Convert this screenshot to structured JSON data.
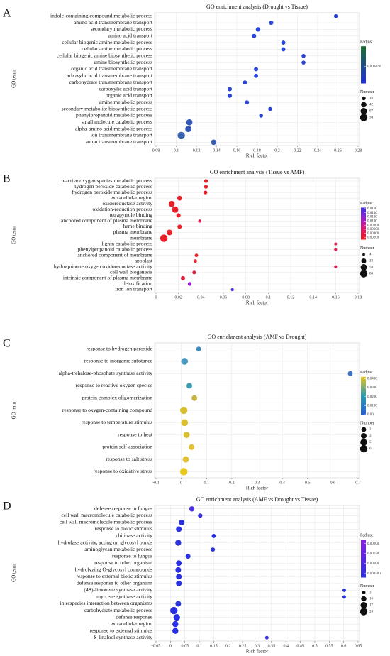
{
  "chart_data": [
    {
      "type": "scatter",
      "panel_label": "A",
      "title": "GO enrichment analysis (Drought vs Tissue)",
      "x_label": "Rich factor",
      "y_label": "GO term",
      "categories": [
        "indole-containing compound metabolic process",
        "amino acid transmembrane transport",
        "secondary metabolic process",
        "amino acid transport",
        "cellular biogenic amine metabolic process",
        "cellular amine metabolic process",
        "cellular biogenic amine biosynthetic process",
        "amine biosynthetic process",
        "organic acid transmembrane transport",
        "carboxylic acid transmembrane transport",
        "carbohydrate transmembrane transport",
        "carboxylic acid transport",
        "organic acid transport",
        "amine metabolic process",
        "secondary metabolite biosynthetic process",
        "phenylpropanoid metabolic process",
        "small molecule catabolic process",
        "alpha-amino acid metabolic process",
        "ion transmembrane transport",
        "anion transmembrane transport"
      ],
      "values": [
        0.258,
        0.194,
        0.181,
        0.177,
        0.206,
        0.206,
        0.226,
        0.226,
        0.179,
        0.179,
        0.168,
        0.153,
        0.153,
        0.17,
        0.193,
        0.184,
        0.113,
        0.112,
        0.105,
        0.137
      ],
      "sizes": [
        16,
        22,
        25,
        22,
        20,
        20,
        17,
        17,
        20,
        20,
        20,
        22,
        22,
        20,
        17,
        17,
        60,
        62,
        94,
        42
      ],
      "colors": [
        "#2a3fd8",
        "#2b45d8",
        "#2b45d8",
        "#2b45d8",
        "#2b45d8",
        "#2b45d8",
        "#2b45d8",
        "#2b45d8",
        "#2b45d8",
        "#2b45d8",
        "#2b45d8",
        "#2b45d8",
        "#2b45d8",
        "#2b45d8",
        "#2b45d8",
        "#2b45d8",
        "#3358b8",
        "#3358b8",
        "#3a62a8",
        "#3a5fb0"
      ],
      "xlim": [
        0.08,
        0.28
      ],
      "xticks": [
        0.08,
        0.1,
        0.12,
        0.14,
        0.16,
        0.18,
        0.2,
        0.22,
        0.24,
        0.26,
        0.28
      ],
      "grid": true,
      "color_title": "Padjust",
      "cmap": [
        "#1f2fd8",
        "#1a6e2e"
      ],
      "clim": [
        0.0002,
        0.0008
      ],
      "cticks": [
        0.000474
      ],
      "size_title": "Number",
      "size_ticks": [
        16,
        42,
        67,
        94
      ]
    },
    {
      "type": "scatter",
      "panel_label": "B",
      "title": "GO enrichment analysis (Tissue vs AMF)",
      "x_label": "Rich factor",
      "y_label": "GO term",
      "categories": [
        "reactive oxygen species metabolic process",
        "hydrogen peroxide catabolic process",
        "hydrogen peroxide metabolic process",
        "extracellular region",
        "oxidoreductase activity",
        "oxidation-reduction process",
        "tetrapyrrole binding",
        "anchored component of plasma membrane",
        "heme binding",
        "plasma membrane",
        "membrane",
        "lignin catabolic process",
        "phenylpropanoid catabolic process",
        "anchored component of membrane",
        "apoplast",
        "hydroquinone:oxygen oxidoreductase activity",
        "cell wall biogenesis",
        "intrinsic component of plasma membrane",
        "detoxification",
        "iron ion transport"
      ],
      "values": [
        0.0445,
        0.0445,
        0.044,
        0.021,
        0.014,
        0.017,
        0.02,
        0.039,
        0.021,
        0.012,
        0.007,
        0.16,
        0.16,
        0.036,
        0.035,
        0.16,
        0.034,
        0.024,
        0.03,
        0.068
      ],
      "sizes": [
        14,
        14,
        14,
        28,
        55,
        60,
        20,
        8,
        20,
        45,
        88,
        6,
        6,
        10,
        10,
        6,
        12,
        20,
        14,
        6
      ],
      "colors": [
        "#e8202a",
        "#e8202a",
        "#e8202a",
        "#e8202a",
        "#e8202a",
        "#e8202a",
        "#e8202a",
        "#e02050",
        "#e8202a",
        "#e8202a",
        "#e8202a",
        "#e02050",
        "#e02050",
        "#e8202a",
        "#e8202a",
        "#e02050",
        "#e02040",
        "#e02040",
        "#a020d0",
        "#4030e0"
      ],
      "xlim": [
        0,
        0.18
      ],
      "xticks": [
        0,
        0.02,
        0.04,
        0.06,
        0.08,
        0.1,
        0.12,
        0.14,
        0.16,
        0.18
      ],
      "grid": true,
      "color_title": "Padjust",
      "cmap": [
        "#e81a1a",
        "#e01a70",
        "#9a20d0",
        "#3a30e0"
      ],
      "clim": [
        0.001,
        0.0165
      ],
      "cticks": [
        {
          "value": 0.016,
          "label": "0.0160"
        },
        {
          "value": 0.014,
          "label": "0.0140"
        },
        {
          "value": 0.012,
          "label": "0.0120"
        },
        {
          "value": 0.01,
          "label": "0.0100"
        },
        {
          "value": 0.008,
          "label": "0.00800"
        },
        {
          "value": 0.006,
          "label": "0.00600"
        },
        {
          "value": 0.004,
          "label": "0.00400"
        },
        {
          "value": 0.002,
          "label": "0.00200"
        }
      ],
      "size_title": "Number",
      "size_ticks": [
        4,
        32,
        59,
        88
      ]
    },
    {
      "type": "scatter",
      "panel_label": "C",
      "title": "GO enrichment analysis (AMF vs Drought)",
      "x_label": "Rich factor",
      "y_label": "GO term",
      "categories": [
        "response to hydrogen peroxide",
        "response to inorganic substance",
        "alpha-trehalose-phosphate synthase activity",
        "response to reactive oxygen species",
        "protein complex oligomerization",
        "response to oxygen-containing compound",
        "response to temperature stimulus",
        "response to heat",
        "protein self-association",
        "response to salt stress",
        "response to oxidative stress"
      ],
      "values": [
        0.069,
        0.013,
        0.669,
        0.032,
        0.052,
        0.01,
        0.013,
        0.021,
        0.041,
        0.018,
        0.01
      ],
      "sizes": [
        2,
        5,
        2,
        3,
        3,
        6,
        5,
        4,
        3,
        4,
        6
      ],
      "colors": [
        "#3a8fc0",
        "#4a9ac0",
        "#3a70c0",
        "#3a9ab0",
        "#c8b440",
        "#d8c030",
        "#d8c030",
        "#d8c030",
        "#e0c030",
        "#e0c030",
        "#e8c820"
      ],
      "xlim": [
        -0.1,
        0.7
      ],
      "xticks": [
        -0.1,
        0,
        0.1,
        0.2,
        0.3,
        0.4,
        0.5,
        0.6,
        0.7
      ],
      "grid": true,
      "color_title": "Padjust",
      "cmap": [
        "#2a5fd0",
        "#2a9ab0",
        "#e8c820"
      ],
      "clim": [
        0,
        0.042
      ],
      "cticks": [
        {
          "value": 0.04,
          "label": "0.0400"
        },
        {
          "value": 0.03,
          "label": "0.0300"
        },
        {
          "value": 0.02,
          "label": "0.0200"
        },
        {
          "value": 0.01,
          "label": "0.0100"
        },
        {
          "value": 0,
          "label": "0.00"
        }
      ],
      "size_title": "Number",
      "size_ticks": [
        2,
        3,
        5,
        6
      ]
    },
    {
      "type": "scatter",
      "panel_label": "D",
      "title": "GO enrichment analysis (AMF vs Drought vs Tissue)",
      "x_label": "Rich factor",
      "y_label": "GO term",
      "categories": [
        "defense response to fungus",
        "cell wall macromolecule catabolic process",
        "cell wall macromolecule metabolic process",
        "response to biotic stimulus",
        "chitinase activity",
        "hydrolase activity, acting on glycosyl bonds",
        "aminoglycan metabolic process",
        "response to fungus",
        "response to other organism",
        "hydrolyzing O-glycosyl compounds",
        "response to external biotic stimulus",
        "defense response to other organism",
        "(4S)-limonene synthase activity",
        "myrcene synthase activity",
        "interspecies interaction between organisms",
        "carbohydrate metabolic process",
        "defense response",
        "extracellular region",
        "response to external stimulus",
        "S-linalool synthase activity"
      ],
      "values": [
        0.074,
        0.103,
        0.039,
        0.029,
        0.15,
        0.027,
        0.147,
        0.061,
        0.029,
        0.027,
        0.029,
        0.029,
        0.602,
        0.602,
        0.027,
        0.012,
        0.022,
        0.017,
        0.017,
        0.334
      ],
      "sizes": [
        10,
        6,
        12,
        12,
        5,
        14,
        5,
        8,
        12,
        12,
        12,
        12,
        3,
        3,
        12,
        24,
        18,
        14,
        14,
        3
      ],
      "colors": [
        "#4a30e0",
        "#3a30e0",
        "#2a30e0",
        "#2a30e0",
        "#2a30e0",
        "#2a30e0",
        "#2a30e0",
        "#2a30e0",
        "#2a30e0",
        "#2a30e0",
        "#2a30e0",
        "#2a30e0",
        "#2a30e0",
        "#2a30e0",
        "#2a30e0",
        "#2a30e0",
        "#2a30e0",
        "#2a30e0",
        "#2a30e0",
        "#3a30e0"
      ],
      "xlim": [
        -0.05,
        0.65
      ],
      "xticks": [
        -0.05,
        0,
        0.05,
        0.1,
        0.15,
        0.2,
        0.25,
        0.3,
        0.35,
        0.4,
        0.45,
        0.5,
        0.55,
        0.6,
        0.65
      ],
      "grid": true,
      "color_title": "Padjust",
      "cmap": [
        "#2a2ee0",
        "#8a20e0"
      ],
      "clim": [
        0.0003,
        0.0022
      ],
      "cticks": [
        {
          "value": 0.002,
          "label": "0.00200"
        },
        {
          "value": 0.0015,
          "label": "0.00150"
        },
        {
          "value": 0.001,
          "label": "0.00100"
        },
        {
          "value": 0.0005,
          "label": "0.000500"
        }
      ],
      "size_title": "Number",
      "size_ticks": [
        3,
        10,
        17,
        24
      ]
    }
  ]
}
